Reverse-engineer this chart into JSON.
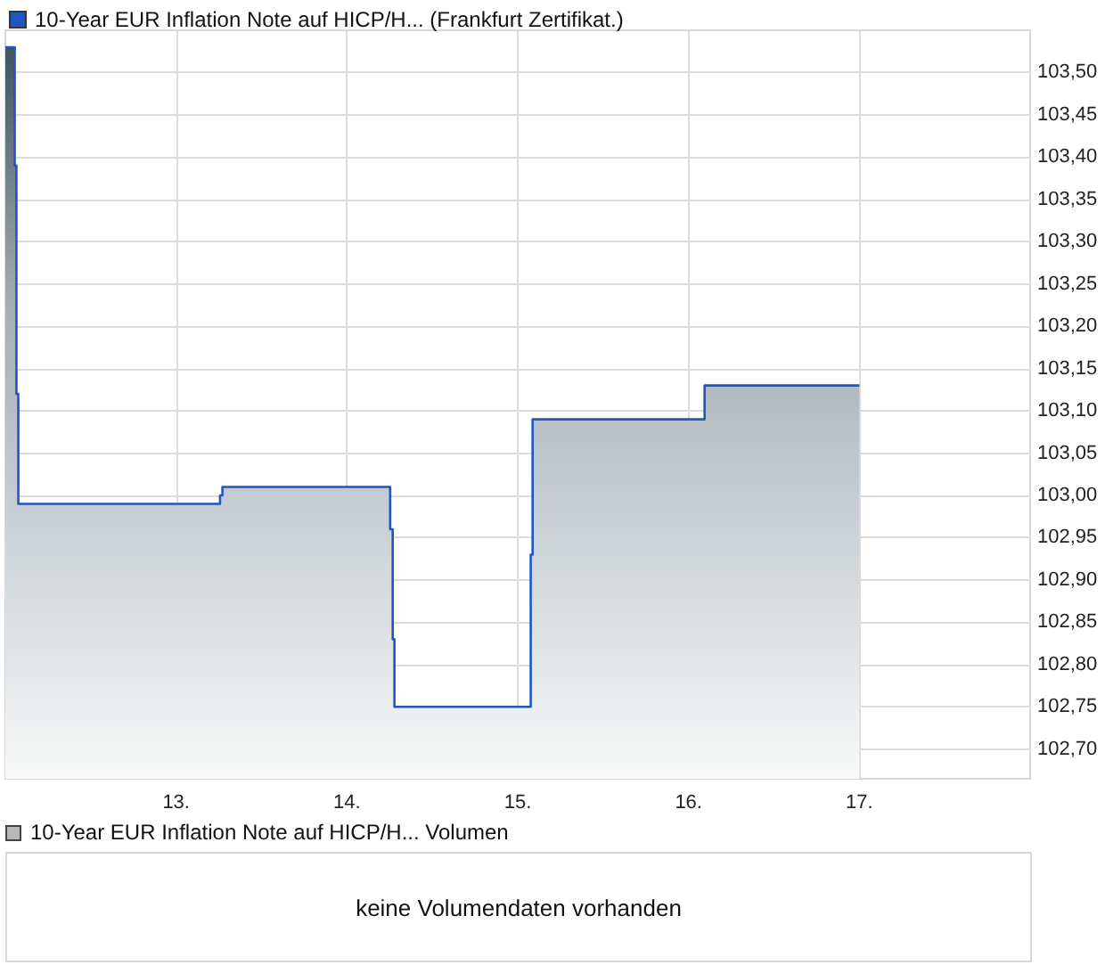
{
  "chart_data": [
    {
      "type": "area",
      "legend": "top left",
      "grid": true,
      "marker": "none",
      "xlim": [
        12,
        18
      ],
      "ylim": [
        102.665,
        103.55
      ],
      "xticks": [
        {
          "value": 13,
          "label": "13."
        },
        {
          "value": 14,
          "label": "14."
        },
        {
          "value": 15,
          "label": "15."
        },
        {
          "value": 16,
          "label": "16."
        },
        {
          "value": 17,
          "label": "17."
        }
      ],
      "yticks": [
        {
          "value": 102.7,
          "label": "102,70"
        },
        {
          "value": 102.75,
          "label": "102,75"
        },
        {
          "value": 102.8,
          "label": "102,80"
        },
        {
          "value": 102.85,
          "label": "102,85"
        },
        {
          "value": 102.9,
          "label": "102,90"
        },
        {
          "value": 102.95,
          "label": "102,95"
        },
        {
          "value": 103.0,
          "label": "103,00"
        },
        {
          "value": 103.05,
          "label": "103,05"
        },
        {
          "value": 103.1,
          "label": "103,10"
        },
        {
          "value": 103.15,
          "label": "103,15"
        },
        {
          "value": 103.2,
          "label": "103,20"
        },
        {
          "value": 103.25,
          "label": "103,25"
        },
        {
          "value": 103.3,
          "label": "103,30"
        },
        {
          "value": 103.35,
          "label": "103,35"
        },
        {
          "value": 103.4,
          "label": "103,40"
        },
        {
          "value": 103.45,
          "label": "103,45"
        },
        {
          "value": 103.5,
          "label": "103,50"
        }
      ],
      "series": [
        {
          "name": "10-Year EUR Inflation Note auf HICP/H... (Frankfurt Zertifikat.)",
          "color": "#1f56c0",
          "x": [
            12.0,
            12.055,
            12.055,
            12.065,
            12.065,
            12.076,
            12.076,
            13.257,
            13.257,
            13.271,
            13.271,
            14.253,
            14.253,
            14.268,
            14.268,
            14.278,
            14.278,
            15.076,
            15.076,
            15.087,
            15.087,
            16.094,
            16.094,
            17.0
          ],
          "values": [
            103.53,
            103.53,
            103.39,
            103.39,
            103.12,
            103.12,
            102.99,
            102.99,
            103.0,
            103.0,
            103.01,
            103.01,
            102.96,
            102.96,
            102.83,
            102.83,
            102.75,
            102.75,
            102.93,
            102.93,
            103.09,
            103.09,
            103.13,
            103.13
          ]
        }
      ]
    },
    {
      "type": "other",
      "title": "10-Year EUR Inflation Note auf HICP/H... Volumen",
      "annotations": [
        "keine Volumendaten vorhanden"
      ]
    }
  ]
}
